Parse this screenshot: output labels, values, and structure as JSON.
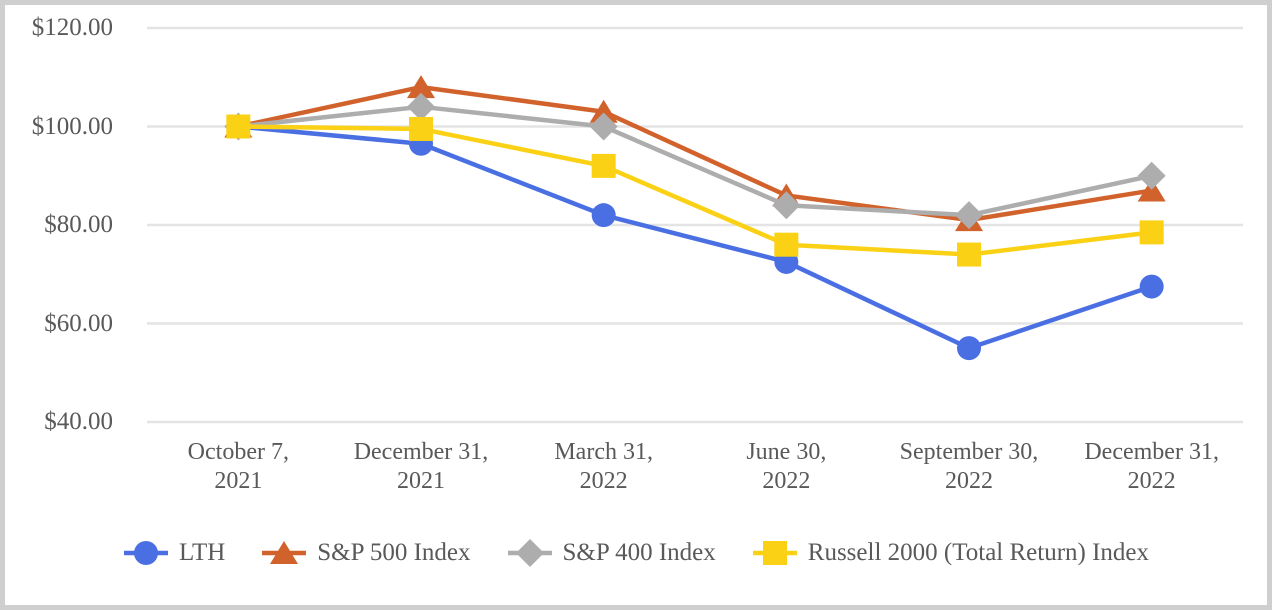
{
  "chart_data": {
    "type": "line",
    "title": "",
    "x_categories": [
      [
        "October 7,",
        "2021"
      ],
      [
        "December 31,",
        "2021"
      ],
      [
        "March 31,",
        "2022"
      ],
      [
        "June 30,",
        "2022"
      ],
      [
        "September 30,",
        "2022"
      ],
      [
        "December 31,",
        "2022"
      ]
    ],
    "y_ticks": [
      {
        "label": "$120.00",
        "value": 120
      },
      {
        "label": "$100.00",
        "value": 100
      },
      {
        "label": "$80.00",
        "value": 80
      },
      {
        "label": "$60.00",
        "value": 60
      },
      {
        "label": "$40.00",
        "value": 40
      }
    ],
    "ylim": [
      40,
      120
    ],
    "grid": "horizontal",
    "legend_position": "bottom",
    "series": [
      {
        "name": "LTH",
        "marker": "circle",
        "color": "#4A6FE3",
        "values": [
          100,
          96.5,
          82,
          72.5,
          55,
          67.5
        ]
      },
      {
        "name": "S&P 500 Index",
        "marker": "triangle",
        "color": "#D2622B",
        "values": [
          100,
          108,
          103,
          86,
          81,
          87
        ]
      },
      {
        "name": "S&P 400 Index",
        "marker": "diamond",
        "color": "#ADADAD",
        "values": [
          100,
          104,
          100,
          84,
          82,
          90
        ]
      },
      {
        "name": "Russell 2000 (Total Return) Index",
        "marker": "square",
        "color": "#FBD116",
        "values": [
          100,
          99.5,
          92,
          76,
          74,
          78.5
        ]
      }
    ]
  },
  "colors": {
    "grid": "#E4E4E4",
    "text": "#595959",
    "border": "#CFCFCF",
    "background": "#FFFFFF"
  }
}
